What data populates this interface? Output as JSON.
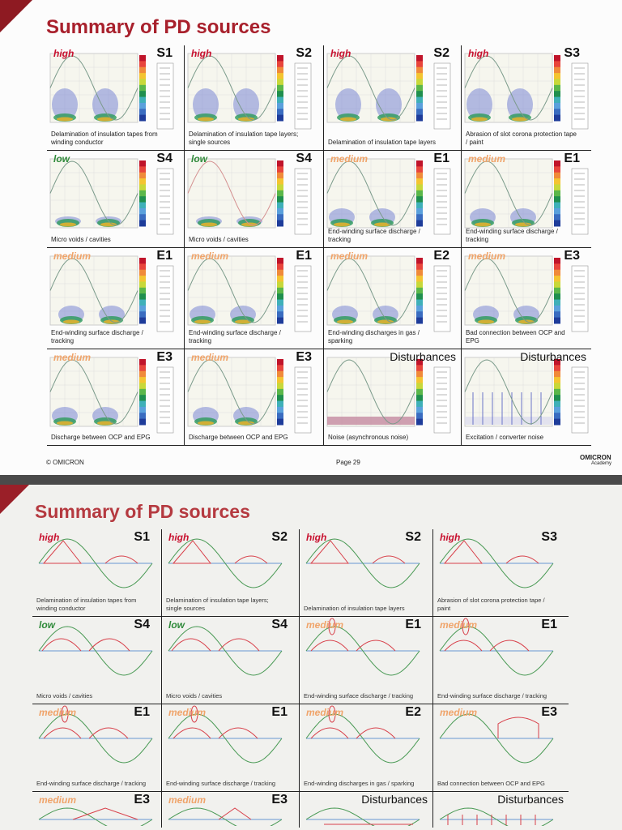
{
  "level_colors": {
    "high": "#c8102e",
    "low": "#2f8a3a",
    "medium": "#f0a46a"
  },
  "top_slide": {
    "title": "Summary of PD sources",
    "footer_left": "© OMICRON",
    "footer_page": "Page 29",
    "logo_text": "OMICRON",
    "logo_sub": "Academy",
    "cells": [
      {
        "level": "high",
        "code": "S1",
        "caption": "Delamination of insulation tapes from winding conductor"
      },
      {
        "level": "high",
        "code": "S2",
        "caption": "Delamination of insulation tape layers; single sources"
      },
      {
        "level": "high",
        "code": "S2",
        "caption": "Delamination of insulation tape layers"
      },
      {
        "level": "high",
        "code": "S3",
        "caption": "Abrasion of slot corona protection tape / paint"
      },
      {
        "level": "low",
        "code": "S4",
        "caption": "Micro voids / cavities"
      },
      {
        "level": "low",
        "code": "S4",
        "caption": "Micro voids / cavities"
      },
      {
        "level": "medium",
        "code": "E1",
        "caption": "End-winding surface discharge / tracking"
      },
      {
        "level": "medium",
        "code": "E1",
        "caption": "End-winding surface discharge / tracking"
      },
      {
        "level": "medium",
        "code": "E1",
        "caption": "End-winding surface discharge / tracking"
      },
      {
        "level": "medium",
        "code": "E1",
        "caption": "End-winding surface discharge / tracking"
      },
      {
        "level": "medium",
        "code": "E2",
        "caption": "End-winding discharges in gas / sparking"
      },
      {
        "level": "medium",
        "code": "E3",
        "caption": "Bad connection between OCP and EPG"
      },
      {
        "level": "medium",
        "code": "E3",
        "caption": "Discharge between OCP and EPG"
      },
      {
        "level": "medium",
        "code": "E3",
        "caption": "Discharge between OCP and EPG"
      },
      {
        "level": "",
        "code": "Disturbances",
        "caption": "Noise (asynchronous noise)"
      },
      {
        "level": "",
        "code": "Disturbances",
        "caption": "Excitation / converter noise"
      }
    ]
  },
  "bottom_slide": {
    "title": "Summary of PD sources",
    "cells": [
      {
        "level": "high",
        "code": "S1",
        "caption": "Delamination of insulation tapes from winding conductor"
      },
      {
        "level": "high",
        "code": "S2",
        "caption": "Delamination of insulation tape layers; single sources"
      },
      {
        "level": "high",
        "code": "S2",
        "caption": "Delamination of insulation tape layers"
      },
      {
        "level": "high",
        "code": "S3",
        "caption": "Abrasion of slot corona protection tape / paint"
      },
      {
        "level": "low",
        "code": "S4",
        "caption": "Micro voids / cavities"
      },
      {
        "level": "low",
        "code": "S4",
        "caption": "Micro voids / cavities"
      },
      {
        "level": "medium",
        "code": "E1",
        "caption": "End-winding surface discharge / tracking"
      },
      {
        "level": "medium",
        "code": "E1",
        "caption": "End-winding surface discharge / tracking"
      },
      {
        "level": "medium",
        "code": "E1",
        "caption": "End-winding surface discharge / tracking"
      },
      {
        "level": "medium",
        "code": "E1",
        "caption": "End-winding surface discharge / tracking"
      },
      {
        "level": "medium",
        "code": "E2",
        "caption": "End-winding discharges in gas / sparking"
      },
      {
        "level": "medium",
        "code": "E3",
        "caption": "Bad connection between OCP and EPG"
      },
      {
        "level": "medium",
        "code": "E3",
        "caption": ""
      },
      {
        "level": "medium",
        "code": "E3",
        "caption": ""
      },
      {
        "level": "",
        "code": "Disturbances",
        "caption": ""
      },
      {
        "level": "",
        "code": "Disturbances",
        "caption": ""
      }
    ]
  }
}
